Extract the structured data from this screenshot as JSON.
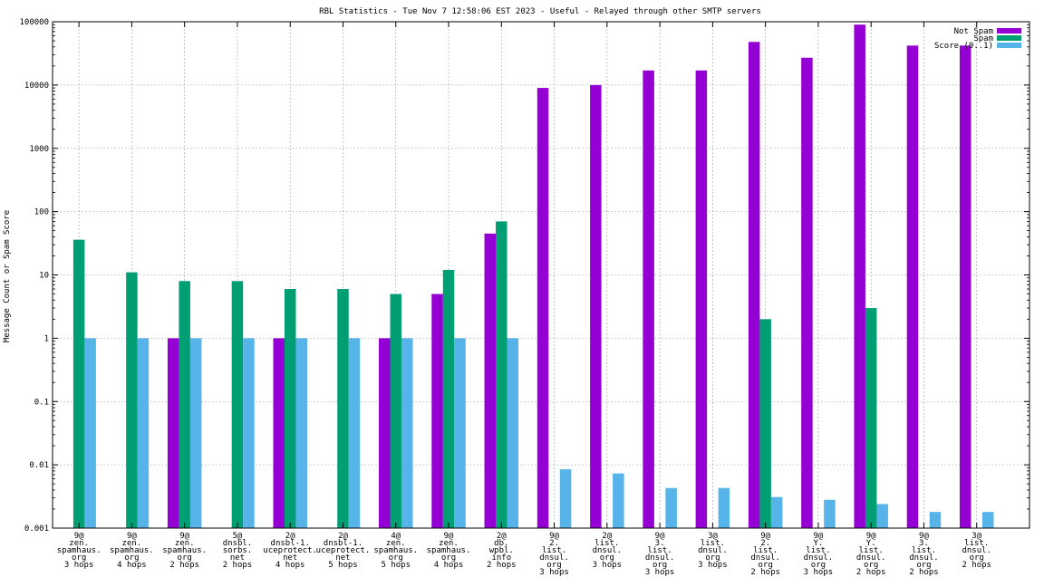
{
  "chart_data": {
    "type": "bar",
    "title": "RBL Statistics - Tue Nov  7 12:58:06 EST 2023 - Useful - Relayed through other SMTP servers",
    "xlabel": "",
    "ylabel": "Message Count or Spam Score",
    "yscale": "log",
    "ylim": [
      0.001,
      100000
    ],
    "yticks": [
      "0.001",
      "0.01",
      "0.1",
      "1",
      "10",
      "100",
      "1000",
      "10000",
      "100000"
    ],
    "grid": true,
    "legend_position": "top-right",
    "categories": [
      [
        "9@",
        "zen.",
        "spamhaus.",
        "org",
        "3 hops"
      ],
      [
        "9@",
        "zen.",
        "spamhaus.",
        "org",
        "4 hops"
      ],
      [
        "9@",
        "zen.",
        "spamhaus.",
        "org",
        "2 hops"
      ],
      [
        "5@",
        "dnsbl.",
        "sorbs.",
        "net",
        "2 hops"
      ],
      [
        "2@",
        "dnsbl-1.",
        "uceprotect.",
        "net",
        "4 hops"
      ],
      [
        "2@",
        "dnsbl-1.",
        "uceprotect.",
        "net",
        "5 hops"
      ],
      [
        "4@",
        "zen.",
        "spamhaus.",
        "org",
        "5 hops"
      ],
      [
        "9@",
        "zen.",
        "spamhaus.",
        "org",
        "4 hops"
      ],
      [
        "2@",
        "db.",
        "wpbl.",
        "info",
        "2 hops"
      ],
      [
        "9@",
        "2.",
        "list.",
        "dnsul.",
        "org",
        "3 hops"
      ],
      [
        "2@",
        "list.",
        "dnsul.",
        "org",
        "3 hops"
      ],
      [
        "9@",
        "3.",
        "list.",
        "dnsul.",
        "org",
        "3 hops"
      ],
      [
        "3@",
        "list.",
        "dnsul.",
        "org",
        "3 hops"
      ],
      [
        "9@",
        "2.",
        "list.",
        "dnsul.",
        "org",
        "2 hops"
      ],
      [
        "9@",
        "Y.",
        "list.",
        "dnsul.",
        "org",
        "3 hops"
      ],
      [
        "9@",
        "Y.",
        "list.",
        "dnsul.",
        "org",
        "2 hops"
      ],
      [
        "9@",
        "3.",
        "list.",
        "dnsul.",
        "org",
        "2 hops"
      ],
      [
        "3@",
        "list.",
        "dnsul.",
        "org",
        "2 hops"
      ]
    ],
    "series": [
      {
        "name": "Not Spam",
        "color": "#9400d3",
        "values": [
          null,
          null,
          1,
          null,
          1,
          null,
          1,
          5,
          45,
          9000,
          10000,
          17000,
          17000,
          48000,
          27000,
          90000,
          42000,
          42000
        ]
      },
      {
        "name": "Spam",
        "color": "#009e73",
        "values": [
          36,
          11,
          8,
          8,
          6,
          6,
          5,
          12,
          70,
          null,
          null,
          null,
          null,
          2,
          null,
          3,
          null,
          null
        ]
      },
      {
        "name": "Score (0..1)",
        "color": "#56b4e9",
        "values": [
          1,
          1,
          1,
          1,
          1,
          1,
          1,
          1,
          1,
          0.0085,
          0.0073,
          0.0043,
          0.0043,
          0.0031,
          0.0028,
          0.0024,
          0.0018,
          0.0018
        ]
      }
    ]
  }
}
